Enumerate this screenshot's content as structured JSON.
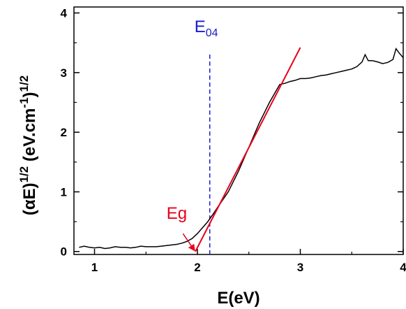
{
  "chart_data": {
    "type": "line",
    "xlabel": "E(eV)",
    "ylabel_parts": {
      "paren_open": "(",
      "alpha": "α",
      "e": "E)",
      "sup1": "1/2",
      "units": " (eV.cm",
      "sup2": "-1",
      "close": ")",
      "sup3": "1/2"
    },
    "xlim": [
      0.8,
      4.0
    ],
    "ylim": [
      -0.05,
      4.1
    ],
    "xticks": [
      1,
      2,
      3,
      4
    ],
    "yticks": [
      0,
      1,
      2,
      3,
      4
    ],
    "series": [
      {
        "kind": "data",
        "color": "#000000",
        "x": [
          0.85,
          0.9,
          0.95,
          1.0,
          1.05,
          1.1,
          1.15,
          1.2,
          1.25,
          1.3,
          1.35,
          1.4,
          1.45,
          1.5,
          1.55,
          1.6,
          1.65,
          1.7,
          1.75,
          1.8,
          1.85,
          1.9,
          1.95,
          2.0,
          2.05,
          2.1,
          2.15,
          2.2,
          2.3,
          2.4,
          2.5,
          2.6,
          2.7,
          2.8,
          2.85,
          2.9,
          2.95,
          3.0,
          3.05,
          3.1,
          3.15,
          3.2,
          3.25,
          3.3,
          3.35,
          3.4,
          3.45,
          3.5,
          3.55,
          3.6,
          3.63,
          3.66,
          3.7,
          3.75,
          3.8,
          3.85,
          3.9,
          3.93,
          3.96,
          4.0
        ],
        "y": [
          0.07,
          0.09,
          0.07,
          0.06,
          0.07,
          0.05,
          0.06,
          0.08,
          0.07,
          0.07,
          0.06,
          0.07,
          0.09,
          0.08,
          0.08,
          0.08,
          0.09,
          0.1,
          0.11,
          0.12,
          0.14,
          0.17,
          0.22,
          0.3,
          0.4,
          0.5,
          0.62,
          0.75,
          1.0,
          1.35,
          1.75,
          2.15,
          2.5,
          2.8,
          2.82,
          2.85,
          2.87,
          2.9,
          2.9,
          2.91,
          2.93,
          2.95,
          2.96,
          2.98,
          3.0,
          3.02,
          3.04,
          3.06,
          3.1,
          3.18,
          3.3,
          3.2,
          3.2,
          3.18,
          3.15,
          3.17,
          3.22,
          3.4,
          3.33,
          3.25
        ]
      },
      {
        "kind": "fit",
        "color": "#e8001c",
        "x": [
          1.98,
          3.0
        ],
        "y": [
          0.0,
          3.42
        ]
      }
    ],
    "e04": {
      "label": "E",
      "sub": "04",
      "x": 2.12,
      "color": "#1a1acc"
    },
    "eg": {
      "label": "Eg",
      "color": "#e8001c",
      "arrow_to": [
        1.97,
        0.02
      ],
      "arrow_from": [
        1.86,
        0.3
      ],
      "text_pos": [
        1.7,
        0.55
      ]
    }
  }
}
